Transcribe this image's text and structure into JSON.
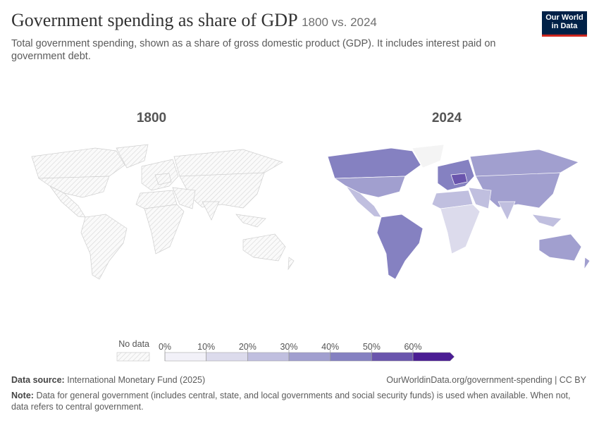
{
  "header": {
    "title": "Government spending as share of GDP",
    "title_suffix": "1800 vs. 2024",
    "subtitle": "Total government spending, shown as a share of gross domestic product (GDP). It includes interest paid on government debt.",
    "logo": [
      "Our World",
      "in Data"
    ]
  },
  "maps": [
    {
      "label": "1800",
      "has_data": false
    },
    {
      "label": "2024",
      "has_data": true
    }
  ],
  "legend": {
    "no_data_label": "No data",
    "ticks": [
      {
        "value": 0,
        "label": "0%"
      },
      {
        "value": 10,
        "label": "10%"
      },
      {
        "value": 20,
        "label": "20%"
      },
      {
        "value": 30,
        "label": "30%"
      },
      {
        "value": 40,
        "label": "40%"
      },
      {
        "value": 50,
        "label": "50%"
      },
      {
        "value": 60,
        "label": "60%"
      }
    ],
    "colors": [
      "#f2f1f8",
      "#dcdbec",
      "#c0bfdf",
      "#a19fcf",
      "#8581c1",
      "#6a55ad",
      "#4b1d94"
    ]
  },
  "footer": {
    "source_label": "Data source:",
    "source": "International Monetary Fund (2025)",
    "url": "OurWorldinData.org/government-spending | CC BY",
    "note_label": "Note:",
    "note": "Data for general government (includes central, state, and local governments and social security funds) is used when available. When not, data refers to central government."
  }
}
